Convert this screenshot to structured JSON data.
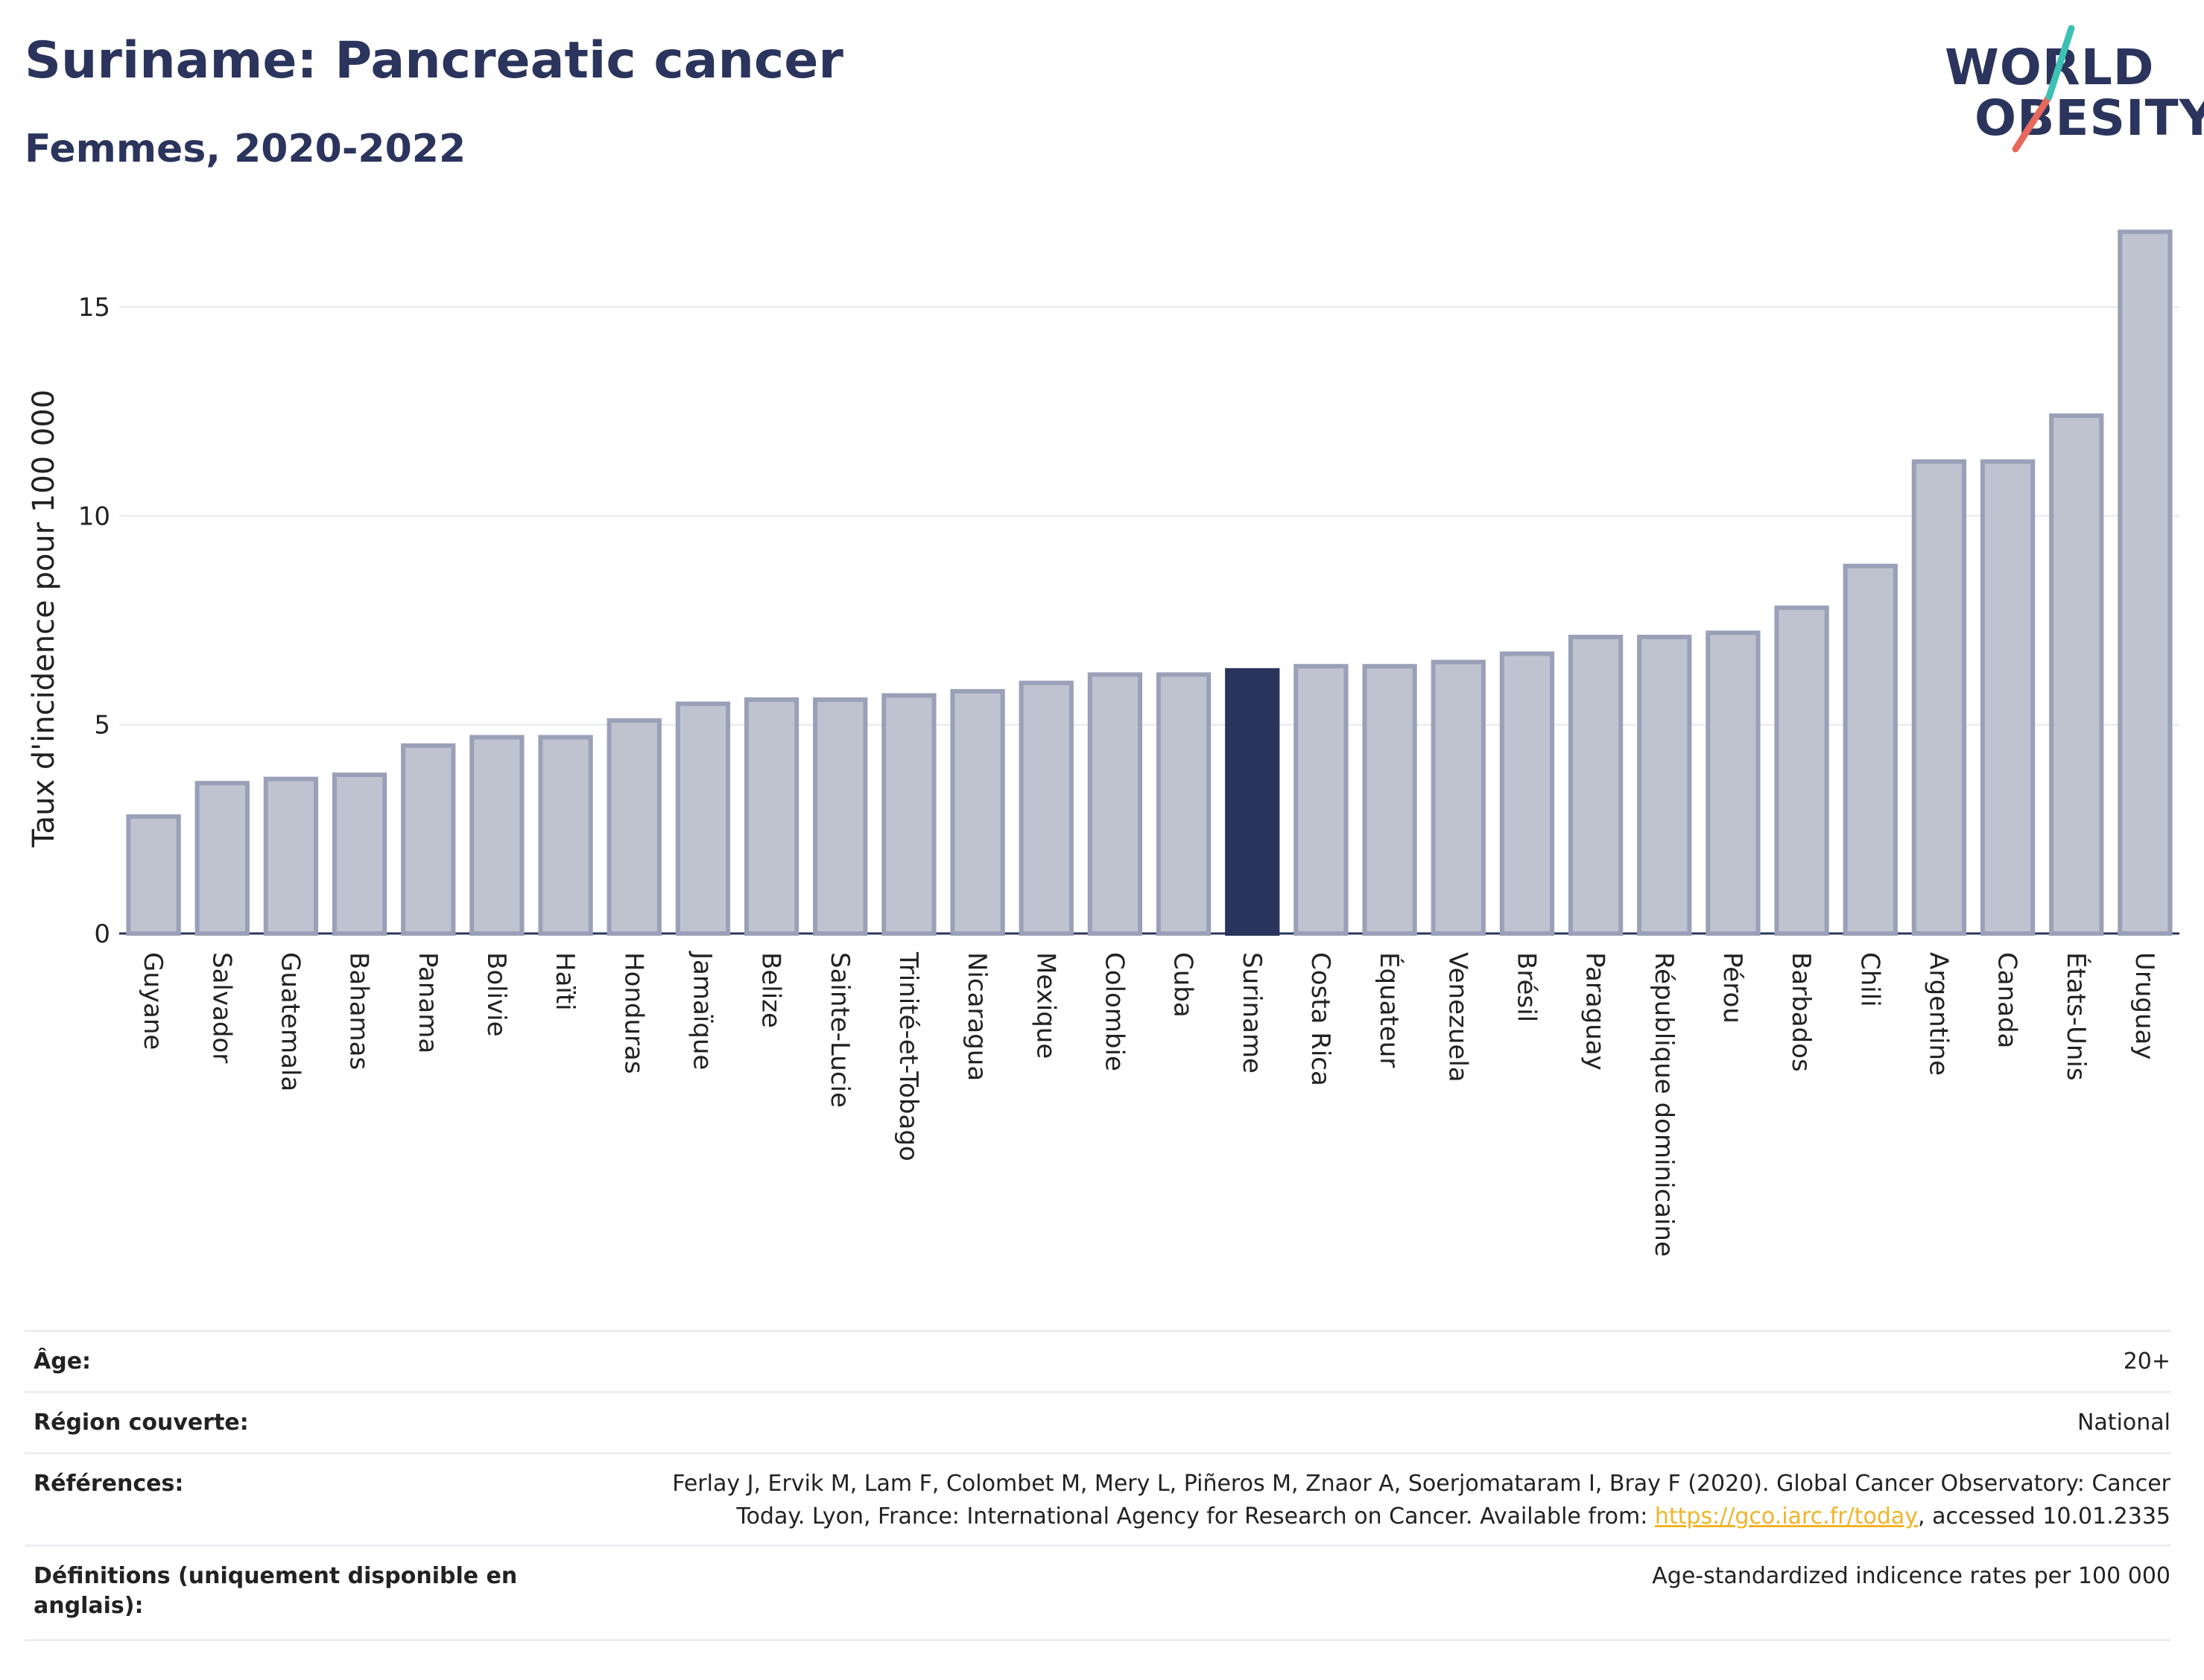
{
  "header": {
    "title": "Suriname: Pancreatic cancer",
    "subtitle": "Femmes, 2020-2022"
  },
  "logo": {
    "line1": "WORLD",
    "line2": "OBESITY"
  },
  "colors": {
    "bar": "#bfc3d0",
    "bar_border": "#9aa0b7",
    "highlight": "#2b345c",
    "accent_teal": "#3cc1b4",
    "accent_red": "#e8685c"
  },
  "chart_data": {
    "type": "bar",
    "ylabel": "Taux d'incidence pour 100 000",
    "ylim": [
      0,
      17
    ],
    "yticks": [
      0,
      5,
      10,
      15
    ],
    "grid": true,
    "highlight": "Suriname",
    "categories": [
      "Guyane",
      "Salvador",
      "Guatemala",
      "Bahamas",
      "Panama",
      "Bolivie",
      "Haïti",
      "Honduras",
      "Jamaïque",
      "Belize",
      "Sainte-Lucie",
      "Trinité-et-Tobago",
      "Nicaragua",
      "Mexique",
      "Colombie",
      "Cuba",
      "Suriname",
      "Costa Rica",
      "Équateur",
      "Venezuela",
      "Brésil",
      "Paraguay",
      "République dominicaine",
      "Pérou",
      "Barbados",
      "Chili",
      "Argentine",
      "Canada",
      "États-Unis",
      "Uruguay"
    ],
    "values": [
      2.8,
      3.6,
      3.7,
      3.8,
      4.5,
      4.7,
      4.7,
      5.1,
      5.5,
      5.6,
      5.6,
      5.7,
      5.8,
      6.0,
      6.2,
      6.2,
      6.3,
      6.4,
      6.4,
      6.5,
      6.7,
      7.1,
      7.1,
      7.2,
      7.8,
      8.8,
      11.3,
      11.3,
      12.4,
      16.8
    ]
  },
  "meta": {
    "age_label": "Âge:",
    "age_value": "20+",
    "region_label": "Région couverte:",
    "region_value": "National",
    "refs_label": "Références:",
    "refs_line1": "Ferlay J, Ervik M, Lam F, Colombet M, Mery L, Piñeros M, Znaor A, Soerjomataram I, Bray F (2020). Global Cancer Observatory: Cancer",
    "refs_line2_pre": "Today. Lyon, France: International Agency for Research on Cancer. Available from: ",
    "refs_link": "https://gco.iarc.fr/today",
    "refs_line2_post": ", accessed 10.01.2335",
    "defs_label": "Définitions (uniquement disponible en anglais):",
    "defs_value": "Age-standardized indicence rates per 100 000"
  }
}
